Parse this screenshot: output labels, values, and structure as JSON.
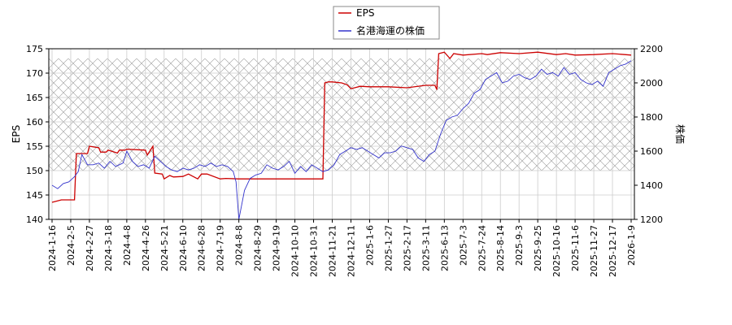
{
  "colors": {
    "eps": "#cc0000",
    "price": "#3333cc",
    "grid": "#cccccc",
    "hatch": "#999999"
  },
  "chart_data": {
    "type": "line",
    "grid": true,
    "legend_position": "top-center",
    "hatched_band": {
      "y1": [
        150,
        173
      ]
    },
    "x_ticks": [
      "2024-1-16",
      "2024-2-5",
      "2024-2-27",
      "2024-3-18",
      "2024-4-8",
      "2024-4-26",
      "2024-5-21",
      "2024-6-10",
      "2024-6-28",
      "2024-7-19",
      "2024-8-8",
      "2024-8-29",
      "2024-9-19",
      "2024-10-10",
      "2024-10-31",
      "2024-11-21",
      "2024-12-11",
      "2025-1-6",
      "2025-1-27",
      "2025-2-17",
      "2025-3-11",
      "2025-6-13",
      "2025-7-3",
      "2025-7-24",
      "2025-8-14",
      "2025-9-3",
      "2025-9-25",
      "2025-10-16",
      "2025-11-6",
      "2025-11-27",
      "2025-12-17",
      "2026-1-9"
    ],
    "y1": {
      "label": "EPS",
      "ylim": [
        140,
        175
      ],
      "ticks": [
        140,
        145,
        150,
        155,
        160,
        165,
        170,
        175
      ]
    },
    "y2": {
      "label": "株価",
      "ylim": [
        1200,
        2200
      ],
      "ticks": [
        1200,
        1400,
        1600,
        1800,
        2000,
        2200
      ]
    },
    "series": [
      {
        "name": "EPS",
        "axis": "y1",
        "x": [
          0,
          0.5,
          1.2,
          1.3,
          1.9,
          2.0,
          2.5,
          2.6,
          2.9,
          3.0,
          3.5,
          3.6,
          3.9,
          4.0,
          5.0,
          5.1,
          5.4,
          5.5,
          5.9,
          6.0,
          6.3,
          6.5,
          7.0,
          7.3,
          7.8,
          8.0,
          8.3,
          9.0,
          9.3,
          10.0,
          11.0,
          12.0,
          13.0,
          14.0,
          14.5,
          14.6,
          14.8,
          15.0,
          15.5,
          15.8,
          16.0,
          16.5,
          17.0,
          18.0,
          19.0,
          20.0,
          20.5,
          20.6,
          20.7,
          21.0,
          21.3,
          21.5,
          22.0,
          23.0,
          23.3,
          24.0,
          25.0,
          26.0,
          27.0,
          27.5,
          28.0,
          29.0,
          30.0,
          31.0
        ],
        "values": [
          143.5,
          144.0,
          144.0,
          153.5,
          153.5,
          155.0,
          154.7,
          153.8,
          153.8,
          154.2,
          153.6,
          154.2,
          154.2,
          154.4,
          154.2,
          153.2,
          155.0,
          149.5,
          149.3,
          148.3,
          149.0,
          148.7,
          148.8,
          149.3,
          148.3,
          149.3,
          149.3,
          148.3,
          148.4,
          148.3,
          148.3,
          148.3,
          148.3,
          148.3,
          148.3,
          168.0,
          168.2,
          168.2,
          168.0,
          167.6,
          166.8,
          167.3,
          167.2,
          167.2,
          167.0,
          167.5,
          167.5,
          166.6,
          174.0,
          174.3,
          173.0,
          174.0,
          173.7,
          174.0,
          173.8,
          174.2,
          174.0,
          174.3,
          173.8,
          174.0,
          173.7,
          173.8,
          174.0,
          173.7
        ]
      },
      {
        "name": "名港海運の株価",
        "axis": "y2",
        "x": [
          0,
          0.3,
          0.6,
          0.9,
          1.2,
          1.4,
          1.6,
          1.9,
          2.2,
          2.5,
          2.8,
          3.1,
          3.4,
          3.6,
          3.8,
          4.0,
          4.3,
          4.6,
          4.9,
          5.2,
          5.5,
          5.8,
          6.1,
          6.4,
          6.7,
          7.0,
          7.3,
          7.6,
          7.9,
          8.2,
          8.5,
          8.8,
          9.1,
          9.4,
          9.7,
          9.85,
          10.0,
          10.3,
          10.6,
          10.9,
          11.2,
          11.5,
          11.8,
          12.1,
          12.4,
          12.7,
          13.0,
          13.3,
          13.6,
          13.9,
          14.2,
          14.5,
          14.8,
          15.1,
          15.4,
          15.7,
          16.0,
          16.3,
          16.6,
          16.9,
          17.2,
          17.5,
          17.8,
          18.1,
          18.4,
          18.7,
          19.0,
          19.3,
          19.6,
          19.9,
          20.2,
          20.5,
          20.8,
          21.1,
          21.4,
          21.7,
          22.0,
          22.3,
          22.6,
          22.9,
          23.2,
          23.5,
          23.8,
          24.1,
          24.4,
          24.7,
          25.0,
          25.3,
          25.6,
          25.9,
          26.2,
          26.5,
          26.8,
          27.1,
          27.4,
          27.7,
          28.0,
          28.3,
          28.6,
          28.9,
          29.2,
          29.5,
          29.8,
          30.1,
          30.4,
          30.7,
          31.0
        ],
        "values": [
          1400,
          1380,
          1410,
          1420,
          1450,
          1480,
          1580,
          1520,
          1520,
          1530,
          1500,
          1540,
          1510,
          1520,
          1530,
          1600,
          1540,
          1510,
          1520,
          1500,
          1570,
          1540,
          1510,
          1490,
          1480,
          1500,
          1490,
          1500,
          1520,
          1510,
          1530,
          1510,
          1520,
          1510,
          1480,
          1420,
          1200,
          1370,
          1440,
          1460,
          1470,
          1520,
          1500,
          1490,
          1510,
          1540,
          1470,
          1510,
          1480,
          1520,
          1500,
          1480,
          1490,
          1520,
          1580,
          1600,
          1620,
          1610,
          1620,
          1600,
          1580,
          1560,
          1590,
          1590,
          1600,
          1630,
          1620,
          1610,
          1560,
          1540,
          1580,
          1600,
          1700,
          1780,
          1800,
          1810,
          1850,
          1880,
          1940,
          1960,
          2020,
          2040,
          2060,
          2000,
          2010,
          2040,
          2050,
          2030,
          2020,
          2040,
          2080,
          2050,
          2060,
          2040,
          2090,
          2050,
          2060,
          2020,
          2000,
          1990,
          2010,
          1980,
          2060,
          2080,
          2100,
          2110,
          2130
        ]
      }
    ]
  }
}
